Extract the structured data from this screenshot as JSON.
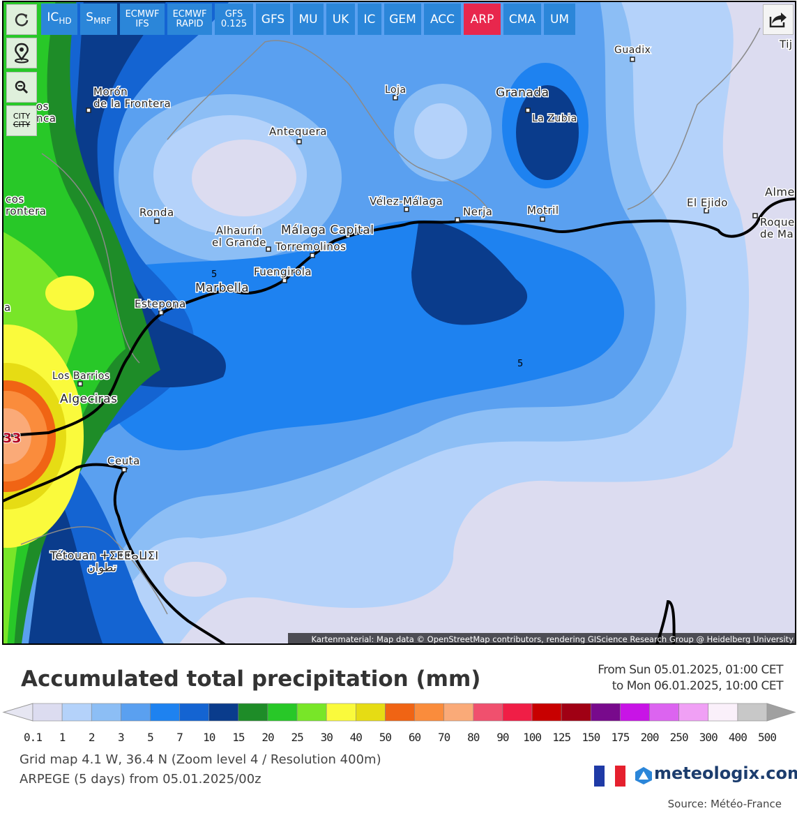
{
  "toolbar": {
    "buttons": [
      {
        "lines": [
          "IC"
        ],
        "sub": "HD"
      },
      {
        "lines": [
          "S"
        ],
        "sub": "MRF"
      },
      {
        "lines": [
          "ECMWF",
          "IFS"
        ]
      },
      {
        "lines": [
          "ECMWF",
          "RAPID"
        ]
      },
      {
        "lines": [
          "GFS",
          "0.125"
        ]
      },
      {
        "lines": [
          "GFS"
        ]
      },
      {
        "lines": [
          "MU"
        ]
      },
      {
        "lines": [
          "UK"
        ]
      },
      {
        "lines": [
          "IC"
        ]
      },
      {
        "lines": [
          "GEM"
        ]
      },
      {
        "lines": [
          "ACC"
        ]
      },
      {
        "lines": [
          "ARP"
        ]
      },
      {
        "lines": [
          "CMA"
        ]
      },
      {
        "lines": [
          "UM"
        ]
      }
    ],
    "active_index": 11
  },
  "side_controls": {
    "city_labels": [
      "CITY",
      "CITY"
    ]
  },
  "map": {
    "cities": [
      {
        "lines": [
          "Morón",
          "de la Frontera"
        ]
      },
      {
        "lines": [
          "Loja"
        ]
      },
      {
        "lines": [
          "Granada"
        ]
      },
      {
        "lines": [
          "La Zubia"
        ]
      },
      {
        "lines": [
          "Guadix"
        ]
      },
      {
        "lines": [
          "Antequera"
        ]
      },
      {
        "lines": [
          "Ronda"
        ]
      },
      {
        "lines": [
          "Vélez-Málaga"
        ]
      },
      {
        "lines": [
          "Nerja"
        ]
      },
      {
        "lines": [
          "Motril"
        ]
      },
      {
        "lines": [
          "El Ejido"
        ]
      },
      {
        "lines": [
          "Alme"
        ]
      },
      {
        "lines": [
          "Roque",
          "de Ma"
        ]
      },
      {
        "lines": [
          "Alhaurín",
          "el Grande"
        ]
      },
      {
        "lines": [
          "Málaga Capital"
        ]
      },
      {
        "lines": [
          "Torremolinos"
        ]
      },
      {
        "lines": [
          "Fuengirola"
        ]
      },
      {
        "lines": [
          "Marbella"
        ]
      },
      {
        "lines": [
          "Estepona"
        ]
      },
      {
        "lines": [
          "Los Barrios"
        ]
      },
      {
        "lines": [
          "Algeciras"
        ]
      },
      {
        "lines": [
          "Ceuta"
        ]
      },
      {
        "lines": [
          "Tétouan ⵜⵉⵟⵟⴰⵡⵉⵏ",
          "تطوان"
        ]
      },
      {
        "lines": [
          "os",
          "nca"
        ]
      },
      {
        "lines": [
          "cos",
          "rontera"
        ]
      },
      {
        "lines": [
          "Tij"
        ]
      },
      {
        "lines": [
          "a"
        ]
      }
    ],
    "contour_labels": [
      "5",
      "5"
    ],
    "max_value_label": "33",
    "attribution": "Kartenmaterial: Map data © OpenStreetMap contributors, rendering GIScience Research Group @ Heidelberg University"
  },
  "title": "Accumulated total precipitation (mm)",
  "period": {
    "from": "From Sun 05.01.2025, 01:00 CET",
    "to": "to Mon 06.01.2025, 10:00 CET"
  },
  "legend": {
    "colors": [
      "#dcdcf0",
      "#b4d2fa",
      "#8cbef5",
      "#5aa0f0",
      "#1e82f0",
      "#1464d2",
      "#0a3c8c",
      "#1e8c28",
      "#28c828",
      "#78e628",
      "#fafa3c",
      "#e6dc14",
      "#f06414",
      "#fa8c3c",
      "#faaa78",
      "#f0506e",
      "#f01e46",
      "#c80000",
      "#a00014",
      "#780a8c",
      "#c814e6",
      "#dc64f0",
      "#f0a0f5",
      "#faf0fa",
      "#c8c8c8"
    ],
    "under_color": "#e6e6f2",
    "over_color": "#a0a0a0",
    "labels": [
      "0.1",
      "1",
      "2",
      "3",
      "5",
      "7",
      "10",
      "15",
      "20",
      "25",
      "30",
      "40",
      "50",
      "60",
      "70",
      "80",
      "90",
      "100",
      "125",
      "150",
      "175",
      "200",
      "250",
      "300",
      "400",
      "500"
    ]
  },
  "info": [
    "Grid map 4.1 W, 36.4 N (Zoom level 4 / Resolution 400m)",
    "ARPEGE (5 days) from 05.01.2025/00z"
  ],
  "brand": "meteologix.com",
  "source": "Source: Météo-France"
}
